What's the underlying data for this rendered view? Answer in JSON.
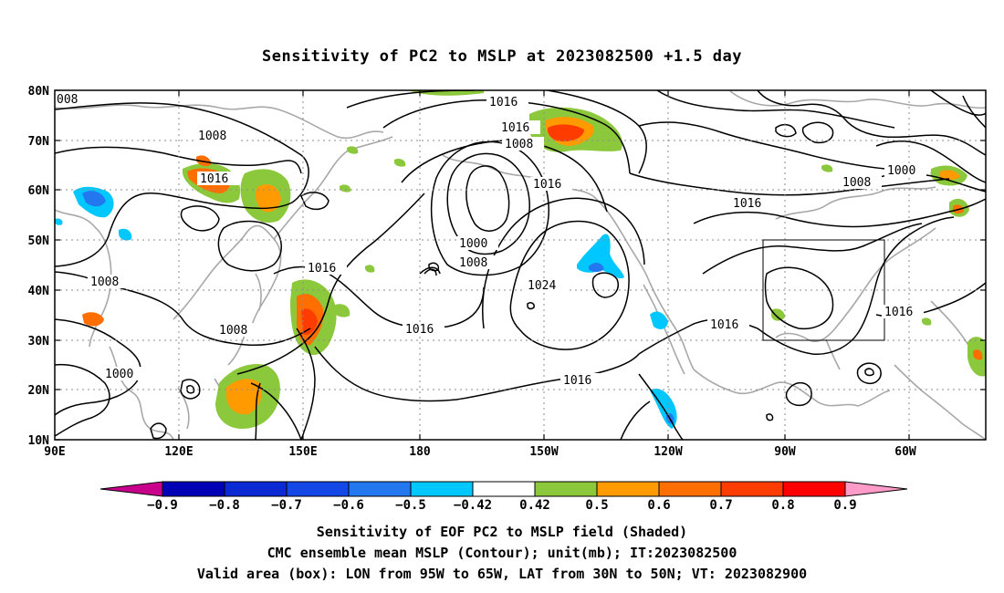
{
  "title": "Sensitivity of PC2 to MSLP at 2023082500 +1.5 day",
  "lat_ticks": [
    "80N",
    "70N",
    "60N",
    "50N",
    "40N",
    "30N",
    "20N",
    "10N"
  ],
  "lon_ticks": [
    "90E",
    "120E",
    "150E",
    "180",
    "150W",
    "120W",
    "90W",
    "60W"
  ],
  "contour_labels": [
    "008",
    "1008",
    "1016",
    "1008",
    "1000",
    "1016",
    "1016",
    "1008",
    "1016",
    "1000",
    "1008",
    "1024",
    "1016",
    "1016",
    "1016",
    "1008",
    "1000",
    "1016",
    "1016",
    "1016",
    "1008",
    "1000"
  ],
  "colorbar": {
    "labels": [
      "-0.9",
      "-0.8",
      "-0.7",
      "-0.6",
      "-0.5",
      "-0.42",
      "0.42",
      "0.5",
      "0.6",
      "0.7",
      "0.8",
      "0.9"
    ],
    "colors": [
      "#c8008c",
      "#0000b4",
      "#0c2ad4",
      "#1448e6",
      "#2378f0",
      "#00c8ff",
      "#ffffff",
      "#8cc83c",
      "#ff9b00",
      "#ff6e00",
      "#ff3c00",
      "#ff0000",
      "#ff9bc8"
    ]
  },
  "captions": [
    "Sensitivity of EOF PC2 to MSLP field (Shaded)",
    "CMC ensemble mean MSLP (Contour); unit(mb); IT:2023082500",
    "Valid area (box): LON from 95W to 65W, LAT from 30N to 50N; VT: 2023082900"
  ],
  "valid_box": {
    "lon_west": -95,
    "lon_east": -65,
    "lat_south": 30,
    "lat_north": 50
  }
}
